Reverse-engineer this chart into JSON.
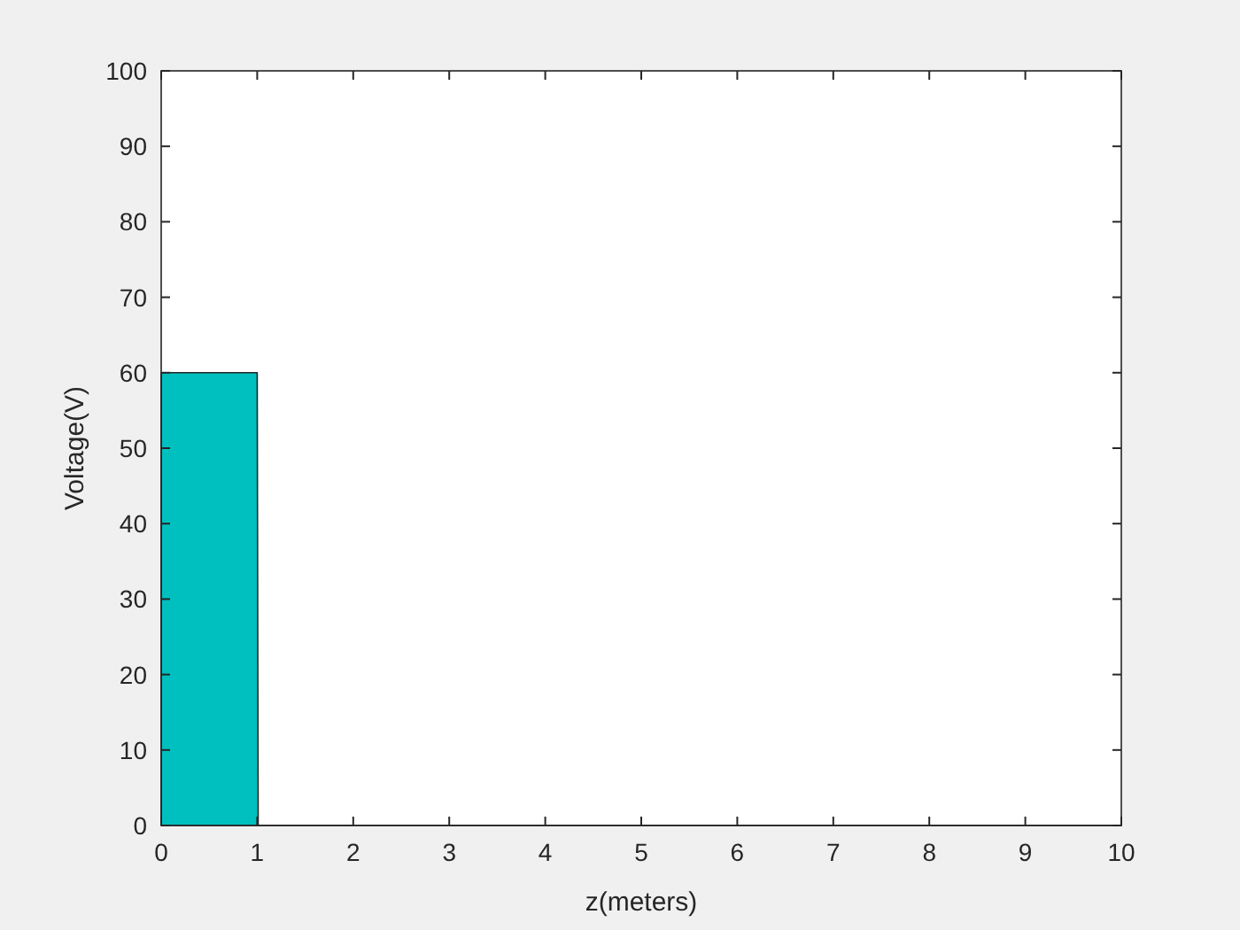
{
  "chart_data": {
    "type": "area",
    "xlabel": "z(meters)",
    "ylabel": "Voltage(V)",
    "x": [
      0,
      1,
      1.01,
      10
    ],
    "series": [
      {
        "color": "#00bfbf",
        "values": [
          60,
          60,
          0,
          0
        ]
      }
    ],
    "xlim": [
      0,
      10
    ],
    "xticks": [
      0,
      1,
      2,
      3,
      4,
      5,
      6,
      7,
      8,
      9,
      10
    ],
    "ylim": [
      0,
      100
    ],
    "yticks": [
      0,
      10,
      20,
      30,
      40,
      50,
      60,
      70,
      80,
      90,
      100
    ],
    "grid": false
  }
}
